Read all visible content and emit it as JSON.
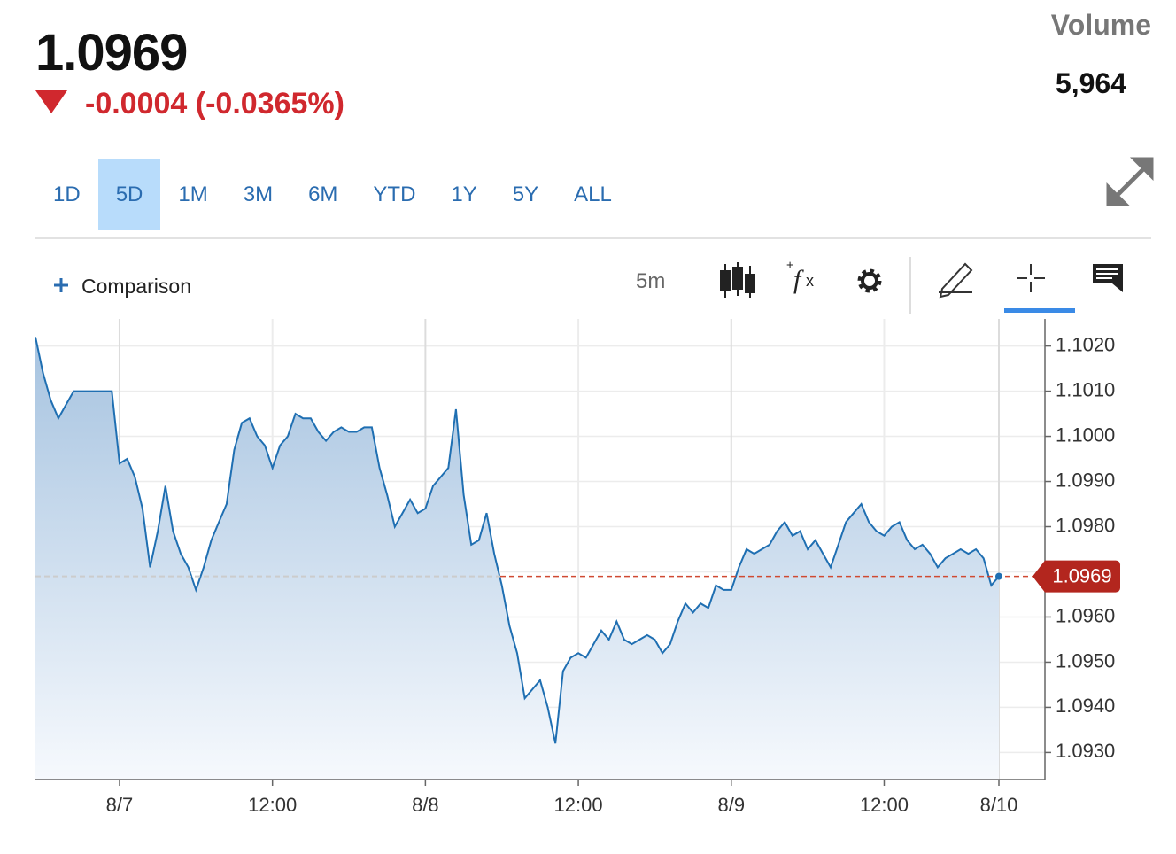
{
  "header": {
    "change": "-0.0004 (-0.0365%)",
    "volume_label": "Volume",
    "volume": "5,964"
  },
  "ranges": {
    "buttons": [
      "1D",
      "5D",
      "1M",
      "3M",
      "6M",
      "YTD",
      "1Y",
      "5Y",
      "ALL"
    ],
    "selected": "5D"
  },
  "toolbar": {
    "comparison": "Comparison",
    "interval": "5m"
  },
  "chart_data": {
    "type": "line",
    "color": "#1f6fb2",
    "grid": true,
    "last_price": {
      "value": 1.0969,
      "label": "1.0969"
    },
    "categories": [
      null,
      null,
      null,
      null,
      null,
      null,
      null,
      null,
      null,
      null,
      null,
      "8/7",
      null,
      null,
      null,
      null,
      null,
      null,
      null,
      null,
      null,
      null,
      null,
      null,
      null,
      null,
      null,
      null,
      null,
      null,
      null,
      "12:00",
      null,
      null,
      null,
      null,
      null,
      null,
      null,
      null,
      null,
      null,
      null,
      null,
      null,
      null,
      null,
      null,
      null,
      null,
      null,
      "8/8",
      null,
      null,
      null,
      null,
      null,
      null,
      null,
      null,
      null,
      null,
      null,
      null,
      null,
      null,
      null,
      null,
      null,
      null,
      null,
      "12:00",
      null,
      null,
      null,
      null,
      null,
      null,
      null,
      null,
      null,
      null,
      null,
      null,
      null,
      null,
      null,
      null,
      null,
      null,
      null,
      "8/9",
      null,
      null,
      null,
      null,
      null,
      null,
      null,
      null,
      null,
      null,
      null,
      null,
      null,
      null,
      null,
      null,
      null,
      null,
      null,
      "12:00",
      null,
      null,
      null,
      null,
      null,
      null,
      null,
      null,
      null,
      null,
      null,
      null,
      null,
      null,
      "8/10"
    ],
    "values": [
      1.1022,
      1.1014,
      1.1008,
      1.1004,
      1.1007,
      1.101,
      1.101,
      1.101,
      1.101,
      1.101,
      1.101,
      1.0994,
      1.0995,
      1.0991,
      1.0984,
      1.0971,
      1.0979,
      1.0989,
      1.0979,
      1.0974,
      1.0971,
      1.0966,
      1.0971,
      1.0977,
      1.0981,
      1.0985,
      1.0997,
      1.1003,
      1.1004,
      1.1,
      1.0998,
      1.0993,
      1.0998,
      1.1,
      1.1005,
      1.1004,
      1.1004,
      1.1001,
      1.0999,
      1.1001,
      1.1002,
      1.1001,
      1.1001,
      1.1002,
      1.1002,
      1.0993,
      1.0987,
      1.098,
      1.0983,
      1.0986,
      1.0983,
      1.0984,
      1.0989,
      1.0991,
      1.0993,
      1.1006,
      1.0987,
      1.0976,
      1.0977,
      1.0983,
      1.0974,
      1.0967,
      1.0958,
      1.0952,
      1.0942,
      1.0944,
      1.0946,
      1.094,
      1.0932,
      1.0948,
      1.0951,
      1.0952,
      1.0951,
      1.0954,
      1.0957,
      1.0955,
      1.0959,
      1.0955,
      1.0954,
      1.0955,
      1.0956,
      1.0955,
      1.0952,
      1.0954,
      1.0959,
      1.0963,
      1.0961,
      1.0963,
      1.0962,
      1.0967,
      1.0966,
      1.0966,
      1.0971,
      1.0975,
      1.0974,
      1.0975,
      1.0976,
      1.0979,
      1.0981,
      1.0978,
      1.0979,
      1.0975,
      1.0977,
      1.0974,
      1.0971,
      1.0976,
      1.0981,
      1.0983,
      1.0985,
      1.0981,
      1.0979,
      1.0978,
      1.098,
      1.0981,
      1.0977,
      1.0975,
      1.0976,
      1.0974,
      1.0971,
      1.0973,
      1.0974,
      1.0975,
      1.0974,
      1.0975,
      1.0973,
      1.0967,
      1.0969
    ],
    "ylim": [
      1.0924,
      1.1026
    ],
    "yticks": [
      {
        "value": 1.093,
        "label": "1.0930"
      },
      {
        "value": 1.094,
        "label": "1.0940"
      },
      {
        "value": 1.095,
        "label": "1.0950"
      },
      {
        "value": 1.096,
        "label": "1.0960"
      },
      {
        "value": 1.097,
        "label": "1.0970"
      },
      {
        "value": 1.098,
        "label": "1.0980"
      },
      {
        "value": 1.099,
        "label": "1.0990"
      },
      {
        "value": 1.1,
        "label": "1.1000"
      },
      {
        "value": 1.101,
        "label": "1.1010"
      },
      {
        "value": 1.102,
        "label": "1.1020"
      }
    ]
  }
}
